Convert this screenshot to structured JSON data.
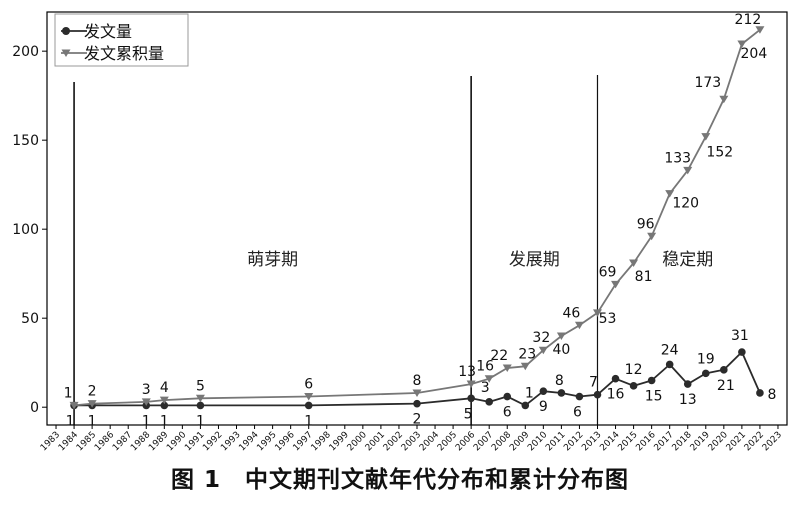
{
  "figure": {
    "caption": "图 1　中文期刊文献年代分布和累计分布图"
  },
  "chart_data": {
    "type": "line",
    "x_ticks": [
      1983,
      1984,
      1985,
      1986,
      1987,
      1988,
      1989,
      1990,
      1991,
      1992,
      1993,
      1994,
      1995,
      1996,
      1997,
      1998,
      1999,
      2000,
      2001,
      2002,
      2003,
      2004,
      2005,
      2006,
      2007,
      2008,
      2009,
      2010,
      2011,
      2012,
      2013,
      2014,
      2015,
      2016,
      2017,
      2018,
      2019,
      2020,
      2021,
      2022,
      2023
    ],
    "xlim": [
      1982.5,
      2023.5
    ],
    "ylim": [
      -10,
      222
    ],
    "y_ticks": [
      0,
      50,
      100,
      150,
      200
    ],
    "grid": false,
    "legend_position": "top-left",
    "colors": {
      "annual": "#2b2b2b",
      "cumulative": "#777777",
      "axis": "#000000"
    },
    "series": [
      {
        "name": "发文量",
        "marker": "circle",
        "x": [
          1984,
          1985,
          1988,
          1989,
          1991,
          1997,
          2003,
          2006,
          2007,
          2008,
          2009,
          2010,
          2011,
          2012,
          2013,
          2014,
          2015,
          2016,
          2017,
          2018,
          2019,
          2020,
          2021,
          2022
        ],
        "values": [
          1,
          1,
          1,
          1,
          1,
          1,
          2,
          5,
          3,
          6,
          1,
          9,
          8,
          6,
          7,
          16,
          12,
          15,
          24,
          13,
          19,
          21,
          31,
          8
        ],
        "labels": [
          "1",
          "1",
          "1",
          "1",
          "1",
          "1",
          "2",
          "5",
          "3",
          "6",
          "1",
          "9",
          "8",
          "6",
          "7",
          "16",
          "12",
          "15",
          "24",
          "13",
          "19",
          "21",
          "31",
          "8"
        ]
      },
      {
        "name": "发文累积量",
        "marker": "triangle-down",
        "x": [
          1984,
          1985,
          1988,
          1989,
          1991,
          1997,
          2003,
          2006,
          2007,
          2008,
          2009,
          2010,
          2011,
          2012,
          2013,
          2014,
          2015,
          2016,
          2017,
          2018,
          2019,
          2020,
          2021,
          2022
        ],
        "values": [
          1,
          2,
          3,
          4,
          5,
          6,
          8,
          13,
          16,
          22,
          23,
          32,
          40,
          46,
          53,
          69,
          81,
          96,
          120,
          133,
          152,
          173,
          204,
          212
        ],
        "labels": [
          "1",
          "2",
          "3",
          "4",
          "5",
          "6",
          "8",
          "13",
          "16",
          "22",
          "23",
          "32",
          "40",
          "46",
          "53",
          "69",
          "81",
          "96",
          "120",
          "133",
          "152",
          "173",
          "204",
          "212"
        ]
      }
    ],
    "period_lines": [
      1984,
      2006,
      2013
    ],
    "periods": [
      {
        "label": "萌芽期",
        "x": 1995,
        "y": 80
      },
      {
        "label": "发展期",
        "x": 2009.5,
        "y": 80
      },
      {
        "label": "稳定期",
        "x": 2018,
        "y": 80
      }
    ]
  }
}
